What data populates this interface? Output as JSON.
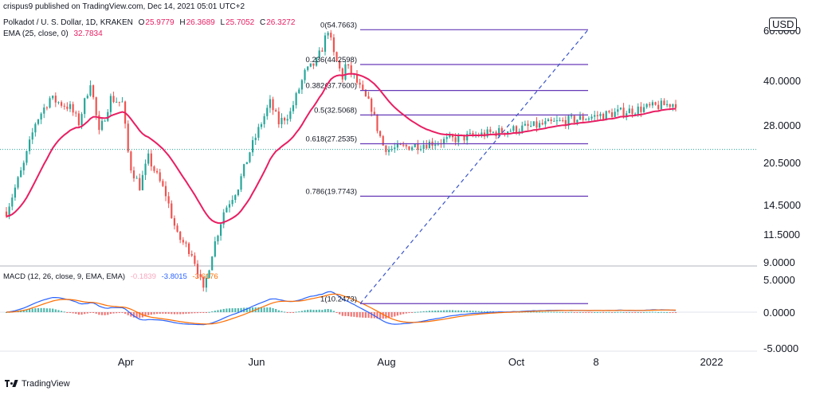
{
  "header": {
    "publisher": "crispus9 published on TradingView.com, Dec 14, 2021 05:01 UTC+2",
    "symbol": "Polkadot / U. S. Dollar, 1D, KRAKEN",
    "ohlc": {
      "o_label": "O",
      "o": "25.9779",
      "h_label": "H",
      "h": "26.3689",
      "l_label": "L",
      "l": "25.7052",
      "c_label": "C",
      "c": "26.3272"
    },
    "ema_label": "EMA (25, close, 0)",
    "ema_value": "32.7834",
    "macd_label": "MACD (12, 26, close, 9, EMA, EMA)",
    "macd_hist": "-0.1839",
    "macd_line": "-3.8015",
    "macd_signal": "-3.6176"
  },
  "currency": "USD",
  "footer": {
    "brand": "TradingView"
  },
  "chart_data": {
    "type": "candlestick",
    "x_ticks": [
      "Apr",
      "Jun",
      "Aug",
      "Oct",
      "8",
      "2022"
    ],
    "price_ticks": [
      "60.0000",
      "40.0000",
      "28.0000",
      "20.5000",
      "14.5000",
      "11.5000",
      "9.0000"
    ],
    "macd_ticks": [
      "5.0000",
      "0.0000",
      "-5.0000"
    ],
    "price_scale": "log",
    "last_price": 26.3272,
    "fib_levels": [
      {
        "label": "0(54.7663)",
        "value": 54.7663
      },
      {
        "label": "0.236(44.2598)",
        "value": 44.2598
      },
      {
        "label": "0.382(37.7600)",
        "value": 37.76
      },
      {
        "label": "0.5(32.5068)",
        "value": 32.5068
      },
      {
        "label": "0.618(27.2535)",
        "value": 27.2535
      },
      {
        "label": "0.786(19.7743)",
        "value": 19.7743
      },
      {
        "label": "1(10.2473)",
        "value": 10.2473
      }
    ],
    "colors": {
      "up": "#26a69a",
      "down": "#ef5350",
      "ema": "#e91e63",
      "fib": "#673ab7",
      "macd": "#2962ff",
      "signal": "#ff6d00"
    }
  }
}
